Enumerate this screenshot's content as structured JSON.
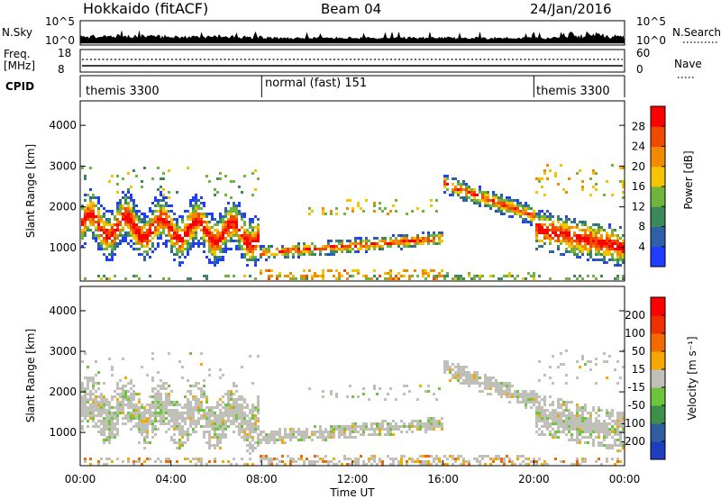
{
  "header": {
    "title": "Hokkaido (fitACF)",
    "beam": "Beam 04",
    "date": "24/Jan/2016"
  },
  "nsky_panel": {
    "left_label": "N.Sky",
    "right_label": "N.Search",
    "left_ticks": [
      "10^5",
      "10^0"
    ],
    "right_ticks": [
      "10^5",
      "10^0"
    ]
  },
  "freq_panel": {
    "label_line1": "Freq.",
    "label_line2": "[MHz]",
    "left_ticks": [
      "18",
      "8"
    ],
    "right_ticks": [
      "60",
      "0"
    ],
    "right_label": "Nave"
  },
  "cpid_panel": {
    "label": "CPID",
    "segments": [
      {
        "label": "themis 3300",
        "start_hour": 0,
        "end_hour": 8
      },
      {
        "label": "normal (fast) 151",
        "start_hour": 8,
        "end_hour": 20
      },
      {
        "label": "themis 3300",
        "start_hour": 20,
        "end_hour": 24
      }
    ]
  },
  "chart_data": [
    {
      "type": "heatmap",
      "quantity": "power",
      "ylabel": "Slant Range [km]",
      "yticks": [
        "1000",
        "2000",
        "3000",
        "4000"
      ],
      "ylim": [
        180,
        4600
      ],
      "xlim": [
        0,
        24
      ],
      "colorbar": {
        "label": "Power [dB]",
        "tick_labels": [
          "4",
          "8",
          "12",
          "16",
          "20",
          "24",
          "28"
        ],
        "colors": [
          "#1f3dff",
          "#2f60a8",
          "#3c8a5c",
          "#6fb43c",
          "#f5c400",
          "#f28a00",
          "#ef4a00",
          "#ff0000"
        ]
      }
    },
    {
      "type": "heatmap",
      "quantity": "velocity",
      "ylabel": "Slant Range [km]",
      "yticks": [
        "1000",
        "2000",
        "3000",
        "4000"
      ],
      "ylim": [
        180,
        4600
      ],
      "xlim": [
        0,
        24
      ],
      "xlabel": "Time UT",
      "xticks": [
        "00:00",
        "04:00",
        "08:00",
        "12:00",
        "16:00",
        "20:00",
        "00:00"
      ],
      "colorbar": {
        "label": "Velocity [m s⁻¹]",
        "tick_labels": [
          "200",
          "100",
          "50",
          "15",
          "-15",
          "-50",
          "-100",
          "-200"
        ],
        "colors": [
          "#1f3dbf",
          "#2f5ea0",
          "#3f8f4a",
          "#6ec43c",
          "#c0c0b8",
          "#f5a800",
          "#f06a00",
          "#ee3000",
          "#ff0000"
        ]
      }
    }
  ]
}
